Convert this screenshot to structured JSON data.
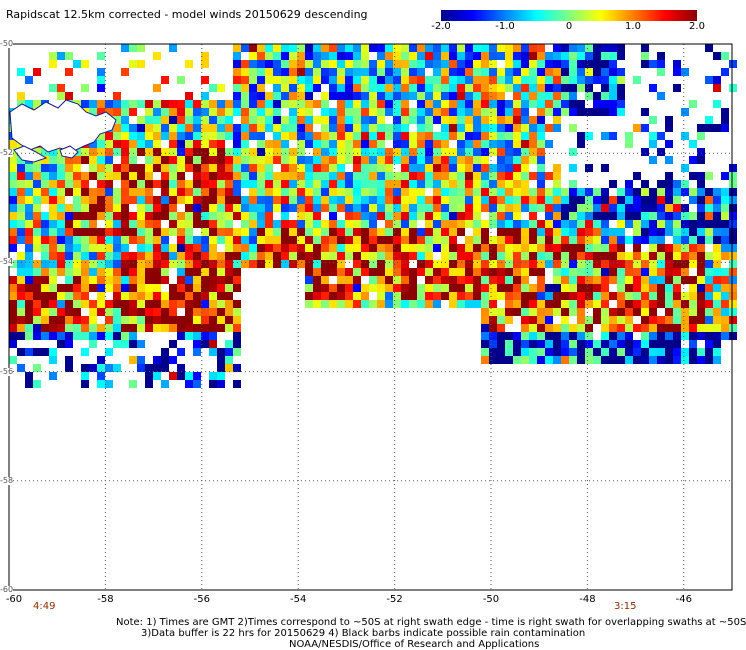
{
  "title": "Rapidscat 12.5km corrected - model winds 20150629 descending",
  "colorbar": {
    "ticks": [
      "-2.0",
      "-1.0",
      "0",
      "1.0",
      "2.0"
    ],
    "tick_values": [
      -2.0,
      -1.0,
      0,
      1.0,
      2.0
    ],
    "range": [
      -2.0,
      2.0
    ],
    "colors": [
      "#00008b",
      "#0000ff",
      "#0080ff",
      "#00ffff",
      "#80ff80",
      "#ffff00",
      "#ff8000",
      "#ff0000",
      "#8b0000"
    ]
  },
  "lat_labels": [
    "-50",
    "-52",
    "-54",
    "-56",
    "-58",
    "-60"
  ],
  "lon_labels": [
    "-60",
    "-58",
    "-56",
    "-54",
    "-52",
    "-50",
    "-48",
    "-46"
  ],
  "times": {
    "left": "4:49",
    "right": "3:15"
  },
  "notes": {
    "line1": "Note: 1) Times are GMT 2)Times correspond to ~50S at right swath edge - time is right swath for overlapping swaths at ~50S",
    "line2": "3)Data buffer is 22 hrs for 20150629 4) Black barbs indicate possible rain contamination",
    "line3": "NOAA/NESDIS/Office of Research and Applications"
  },
  "map": {
    "land_color": "#ffffff",
    "coast_color": "#1a1a8a",
    "gridline_style": "dotted",
    "lat_range": [
      -60,
      -50
    ],
    "lon_range": [
      -60,
      -45
    ]
  }
}
